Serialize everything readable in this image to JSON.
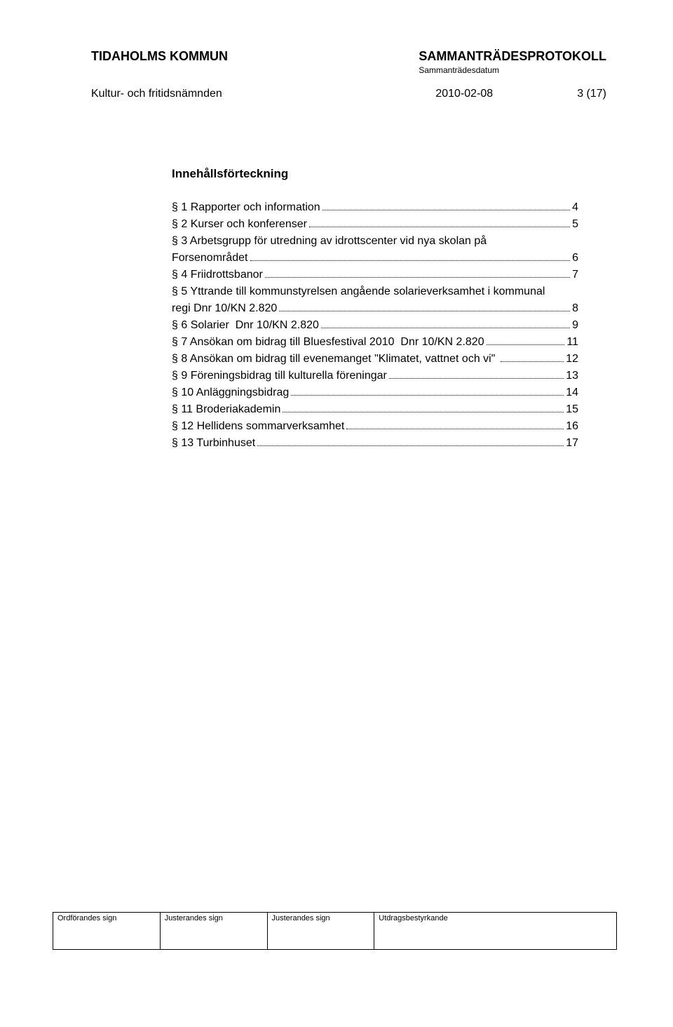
{
  "header": {
    "org": "TIDAHOLMS KOMMUN",
    "doc_title": "SAMMANTRÄDESPROTOKOLL",
    "doc_subtitle": "Sammanträdesdatum",
    "committee": "Kultur- och fritidsnämnden",
    "date": "2010-02-08",
    "page_of": "3 (17)"
  },
  "toc": {
    "title": "Innehållsförteckning",
    "items": [
      {
        "label": "§ 1 Rapporter och information",
        "page": "4",
        "wrap": false
      },
      {
        "label": "§ 2 Kurser och konferenser",
        "page": "5",
        "wrap": false
      },
      {
        "label": "§ 3 Arbetsgrupp för utredning av idrottscenter vid nya skolan på",
        "label2": "Forsenområdet",
        "page": "6",
        "wrap": true
      },
      {
        "label": "§ 4 Friidrottsbanor",
        "page": "7",
        "wrap": false
      },
      {
        "label": "§ 5 Yttrande till kommunstyrelsen angående solarieverksamhet i kommunal",
        "label2": "regi Dnr 10/KN 2.820",
        "page": "8",
        "wrap": true
      },
      {
        "label": "§ 6 Solarier  Dnr 10/KN 2.820",
        "page": "9",
        "wrap": false
      },
      {
        "label": "§ 7 Ansökan om bidrag till Bluesfestival 2010  Dnr 10/KN 2.820",
        "page": "11",
        "wrap": false
      },
      {
        "label": "§ 8 Ansökan om bidrag till evenemanget \"Klimatet, vattnet och vi\" ",
        "page": "12",
        "wrap": false
      },
      {
        "label": "§ 9 Föreningsbidrag till kulturella föreningar",
        "page": "13",
        "wrap": false
      },
      {
        "label": "§ 10 Anläggningsbidrag",
        "page": "14",
        "wrap": false
      },
      {
        "label": "§ 11 Broderiakademin",
        "page": "15",
        "wrap": false
      },
      {
        "label": "§ 12 Hellidens sommarverksamhet",
        "page": "16",
        "wrap": false
      },
      {
        "label": "§ 13 Turbinhuset",
        "page": "17",
        "wrap": false
      }
    ]
  },
  "footer": {
    "c1": "Ordförandes sign",
    "c2": "Justerandes sign",
    "c3": "Justerandes sign",
    "c4": "Utdragsbestyrkande"
  },
  "colors": {
    "text": "#000000",
    "background": "#ffffff"
  },
  "typography": {
    "header_bold_pt": 18,
    "body_pt": 16,
    "small_pt": 12,
    "footer_pt": 11,
    "font_family": "Arial"
  }
}
